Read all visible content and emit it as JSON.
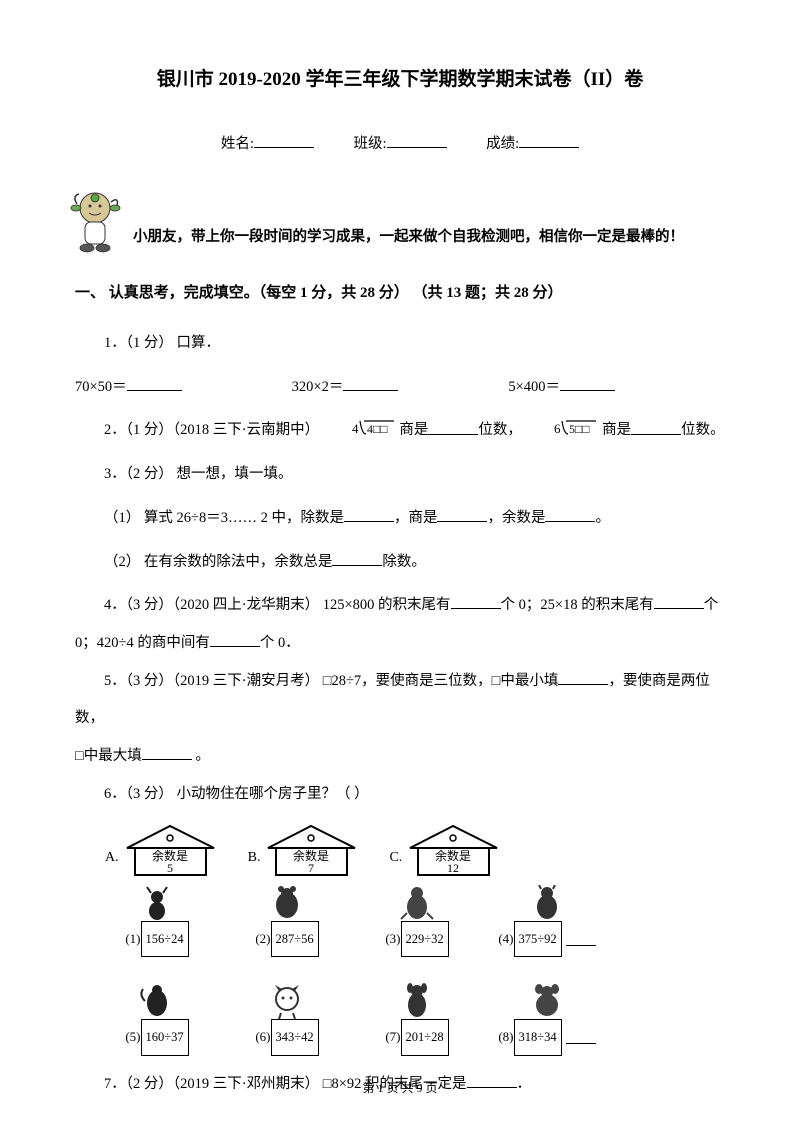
{
  "title": "银川市 2019-2020 学年三年级下学期数学期末试卷（II）卷",
  "fields": {
    "name_label": "姓名:",
    "class_label": "班级:",
    "score_label": "成绩:"
  },
  "intro": "小朋友，带上你一段时间的学习成果，一起来做个自我检测吧，相信你一定是最棒的！",
  "section1": "一、 认真思考，完成填空。（每空 1 分，共 28 分） （共 13 题；共 28 分）",
  "q1": {
    "head": "1．（1 分） 口算．",
    "a": "70×50＝",
    "b": "320×2＝",
    "c": "5×400＝"
  },
  "q2": {
    "pre": "2．（1 分）（2018 三下·云南期中）",
    "mid1": " 商是",
    "mid2": "位数，",
    "mid3": " 商是",
    "mid4": "位数。",
    "div1": {
      "divisor": "4",
      "dividend": "4□□"
    },
    "div2": {
      "divisor": "6",
      "dividend": "5□□"
    }
  },
  "q3": {
    "head": "3．（2 分） 想一想，填一填。",
    "p1a": "（1） 算式 26÷8＝3…… 2 中，除数是",
    "p1b": "，商是",
    "p1c": "，余数是",
    "p1d": "。",
    "p2a": "（2） 在有余数的除法中，余数总是",
    "p2b": "除数。"
  },
  "q4": {
    "a": "4．（3 分）（2020 四上·龙华期末） 125×800 的积末尾有",
    "b": "个 0；25×18 的积末尾有",
    "c": "个",
    "d": "0；420÷4 的商中间有",
    "e": "个 0．"
  },
  "q5": {
    "a": "5．（3 分）（2019 三下·潮安月考） □28÷7，要使商是三位数，□中最小填",
    "b": "，要使商是两位数，",
    "c": "□中最大填",
    "d": " 。"
  },
  "q6": {
    "head": "6．（3 分） 小动物住在哪个房子里？（    ）",
    "houses": [
      {
        "letter": "A.",
        "text1": "余数是",
        "text2": "5"
      },
      {
        "letter": "B.",
        "text1": "余数是",
        "text2": "7"
      },
      {
        "letter": "C.",
        "text1": "余数是",
        "text2": "12"
      }
    ],
    "items": [
      {
        "n": "(1)",
        "expr": "156÷24"
      },
      {
        "n": "(2)",
        "expr": "287÷56"
      },
      {
        "n": "(3)",
        "expr": "229÷32"
      },
      {
        "n": "(4)",
        "expr": "375÷92"
      },
      {
        "n": "(5)",
        "expr": "160÷37"
      },
      {
        "n": "(6)",
        "expr": "343÷42"
      },
      {
        "n": "(7)",
        "expr": "201÷28"
      },
      {
        "n": "(8)",
        "expr": "318÷34"
      }
    ]
  },
  "q7": {
    "a": "7．（2 分）（2019 三下·邓州期末） □8×92 积的末尾一定是",
    "b": "．"
  },
  "footer": "第 1 页 共 9 页"
}
